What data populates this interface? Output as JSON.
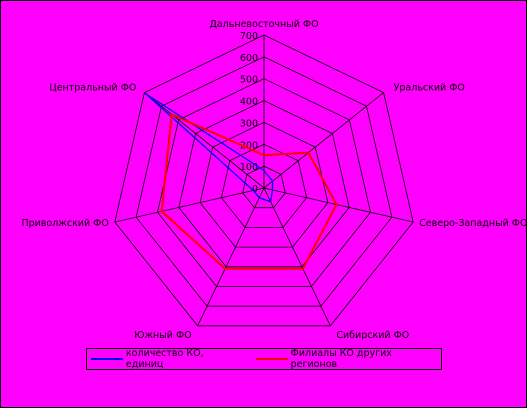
{
  "chart_data": {
    "type": "radar",
    "categories": [
      "Дальневосточный ФО",
      "Уральский ФО",
      "Северо-Западный ФО",
      "Сибирский ФО",
      "Южный ФО",
      "Приволжский ФО",
      "Центральный ФО"
    ],
    "ticks": [
      "0",
      "100",
      "200",
      "300",
      "400",
      "500",
      "600",
      "700"
    ],
    "rlim": [
      0,
      700
    ],
    "grid": true,
    "legend_position": "bottom",
    "series": [
      {
        "name": "количество КО, единиц",
        "color": "#0000ff",
        "values": [
          80,
          50,
          40,
          70,
          50,
          50,
          690
        ]
      },
      {
        "name": "Филиалы КО других регионов",
        "color": "#ff0000",
        "values": [
          150,
          260,
          340,
          410,
          410,
          480,
          540
        ]
      }
    ]
  }
}
